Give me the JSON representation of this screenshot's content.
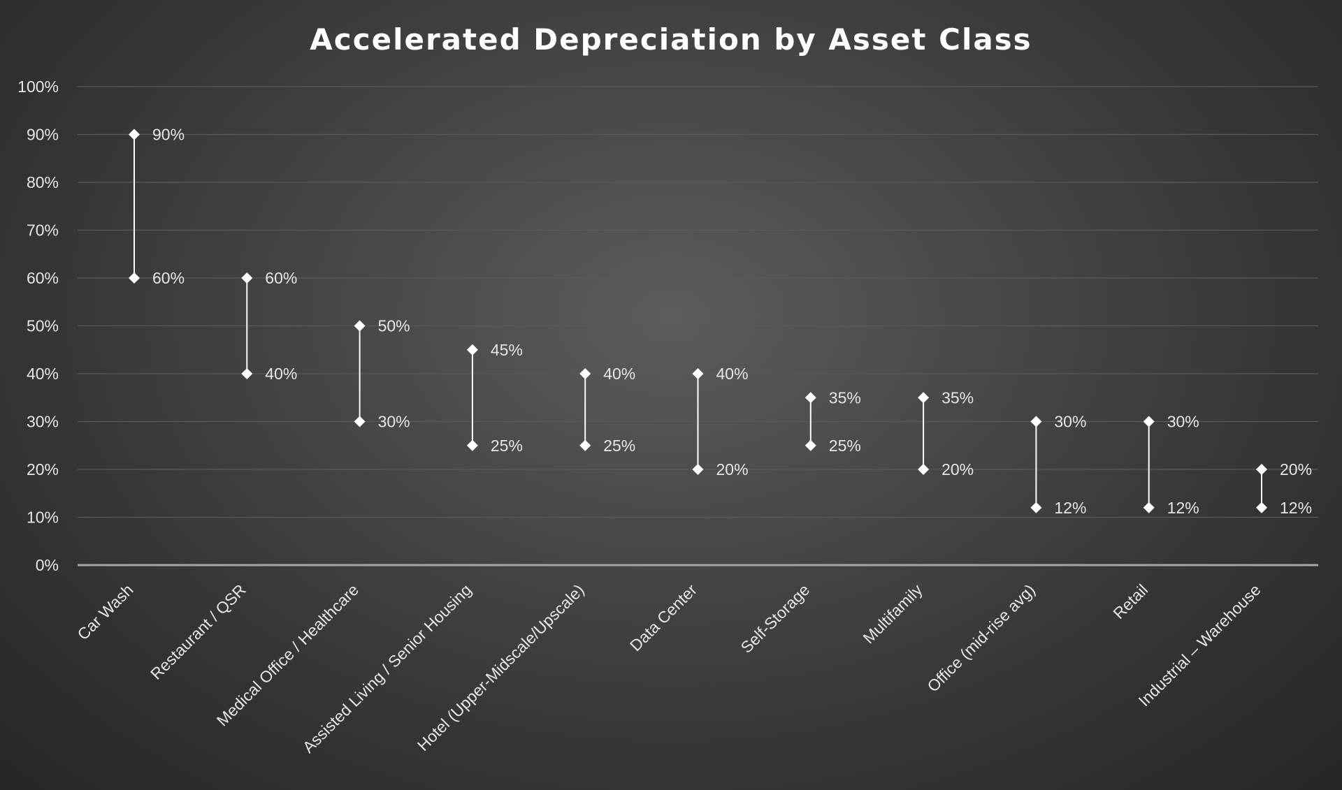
{
  "chart_data": {
    "type": "range",
    "title": "Accelerated Depreciation by Asset Class",
    "xlabel": "",
    "ylabel": "",
    "ylim": [
      0,
      100
    ],
    "y_ticks": [
      "0%",
      "10%",
      "20%",
      "30%",
      "40%",
      "50%",
      "60%",
      "70%",
      "80%",
      "90%",
      "100%"
    ],
    "grid": true,
    "legend": "none",
    "colors": {
      "marker": "#ffffff",
      "line": "#ffffff",
      "grid": "#5a5a5a",
      "axis": "#a6a6a6",
      "text": "#e6e6e6"
    },
    "categories": [
      "Car Wash",
      "Restaurant / QSR",
      "Medical Office / Healthcare",
      "Assisted Living / Senior Housing",
      "Hotel (Upper-Midscale/Upscale)",
      "Data Center",
      "Self-Storage",
      "Multifamily",
      "Office (mid-rise avg)",
      "Retail",
      "Industrial – Warehouse"
    ],
    "series": [
      {
        "values": [
          90,
          60,
          50,
          45,
          40,
          40,
          35,
          35,
          30,
          30,
          20
        ]
      },
      {
        "values": [
          60,
          40,
          30,
          25,
          25,
          20,
          25,
          20,
          12,
          12,
          12
        ]
      }
    ],
    "data_labels": {
      "high": [
        "90%",
        "60%",
        "50%",
        "45%",
        "40%",
        "40%",
        "35%",
        "35%",
        "30%",
        "30%",
        "20%"
      ],
      "low": [
        "60%",
        "40%",
        "30%",
        "25%",
        "25%",
        "20%",
        "25%",
        "20%",
        "12%",
        "12%",
        "12%"
      ]
    }
  }
}
